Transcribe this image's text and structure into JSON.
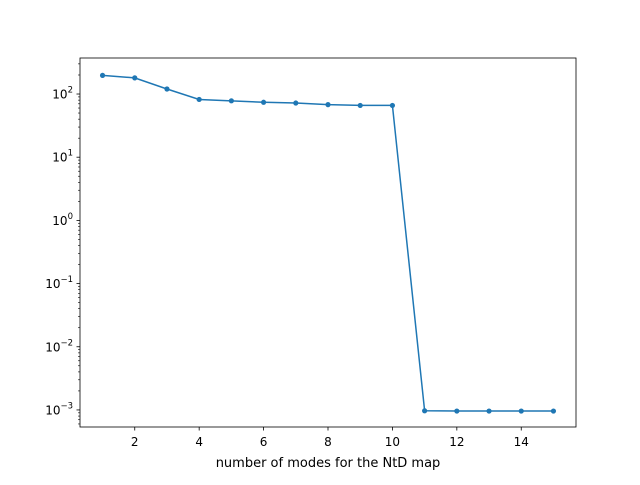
{
  "chart_data": {
    "type": "line",
    "title": "",
    "xlabel": "number of modes for the NtD map",
    "ylabel": "",
    "yscale": "log",
    "xlim": [
      0.3,
      15.7
    ],
    "ylim_log10": [
      -3.27,
      2.57
    ],
    "xticks": [
      2,
      4,
      6,
      8,
      10,
      12,
      14
    ],
    "yticks": [
      {
        "exp": 2,
        "base": "10",
        "sup": "2"
      },
      {
        "exp": 1,
        "base": "10",
        "sup": "1"
      },
      {
        "exp": 0,
        "base": "10",
        "sup": "0"
      },
      {
        "exp": -1,
        "base": "10",
        "sup": "−1"
      },
      {
        "exp": -2,
        "base": "10",
        "sup": "−2"
      },
      {
        "exp": -3,
        "base": "10",
        "sup": "−3"
      }
    ],
    "grid": false,
    "series": [
      {
        "color": "#1f77b4",
        "marker": "circle",
        "x": [
          1,
          2,
          3,
          4,
          5,
          6,
          7,
          8,
          9,
          10,
          11,
          12,
          13,
          14,
          15
        ],
        "y": [
          197,
          180,
          120,
          82,
          78,
          74,
          72,
          68,
          66,
          66,
          0.00097,
          0.00096,
          0.00096,
          0.00096,
          0.00096
        ]
      }
    ]
  }
}
